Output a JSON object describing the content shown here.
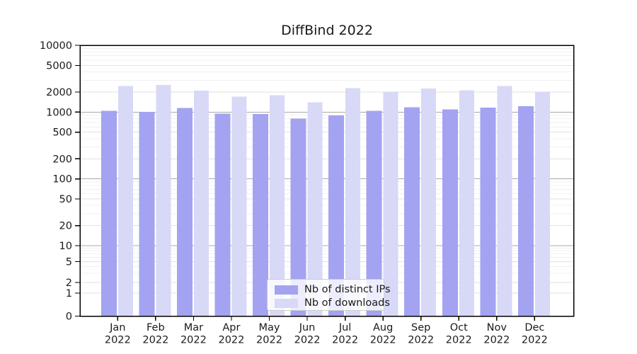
{
  "title": "DiffBind 2022",
  "legend": {
    "position": "lower center",
    "items": [
      {
        "label": "Nb of distinct IPs",
        "color": "#a3a3f2"
      },
      {
        "label": "Nb of downloads",
        "color": "#d8d8f7"
      }
    ]
  },
  "chart_data": {
    "type": "bar",
    "title": "DiffBind 2022",
    "categories": [
      "Jan",
      "Feb",
      "Mar",
      "Apr",
      "May",
      "Jun",
      "Jul",
      "Aug",
      "Sep",
      "Oct",
      "Nov",
      "Dec"
    ],
    "year_label": "2022",
    "series": [
      {
        "name": "Nb of distinct IPs",
        "color": "#a3a3f2",
        "values": [
          1050,
          1010,
          1160,
          950,
          935,
          800,
          890,
          1050,
          1180,
          1100,
          1170,
          1220
        ]
      },
      {
        "name": "Nb of downloads",
        "color": "#d8d8f7",
        "values": [
          2450,
          2550,
          2110,
          1710,
          1780,
          1400,
          2290,
          2000,
          2250,
          2130,
          2450,
          2020
        ]
      }
    ],
    "xlabel": "",
    "ylabel": "",
    "y_axis": {
      "scale": "symlog",
      "range": [
        0,
        10000
      ],
      "ticks": [
        0,
        1,
        2,
        5,
        10,
        20,
        50,
        100,
        200,
        500,
        1000,
        2000,
        5000,
        10000
      ],
      "grid": true
    }
  }
}
